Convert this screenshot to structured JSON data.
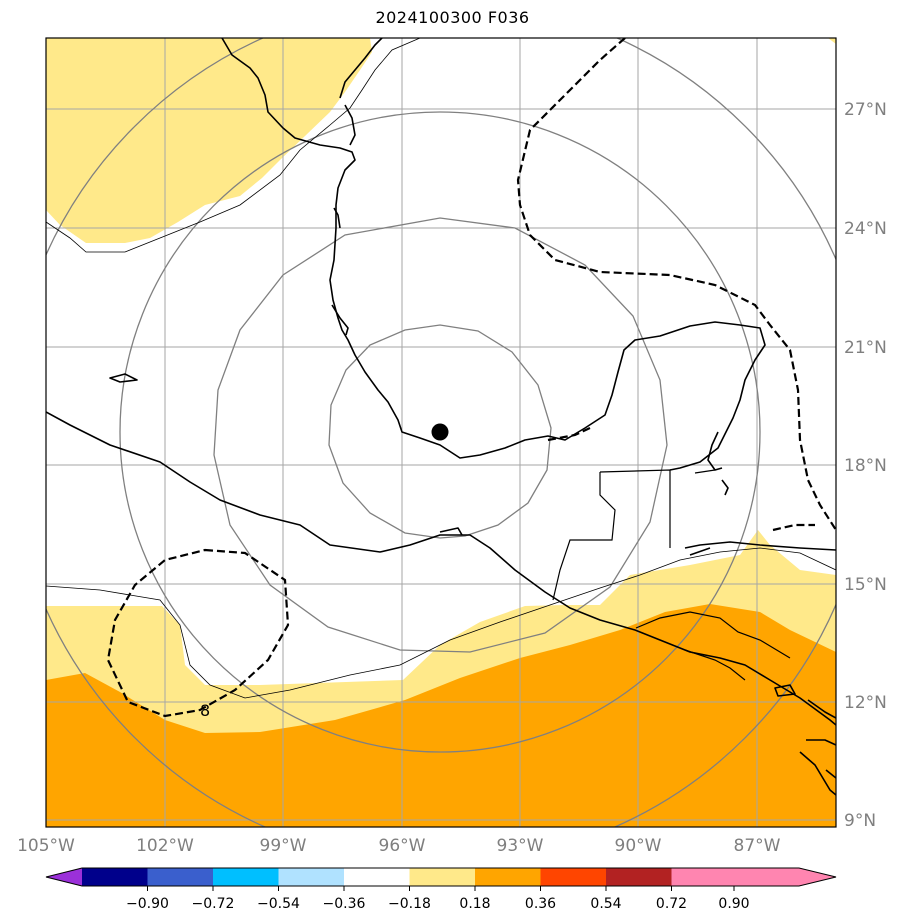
{
  "title": "2024100300 F036",
  "map": {
    "lon_ticks": [
      "105°W",
      "102°W",
      "99°W",
      "96°W",
      "93°W",
      "90°W",
      "87°W"
    ],
    "lat_ticks": [
      "27°N",
      "24°N",
      "21°N",
      "18°N",
      "15°N",
      "12°N",
      "9°N"
    ],
    "contour_label": "8",
    "center_marker": "storm-center"
  },
  "colorbar": {
    "labels": [
      "−0.90",
      "−0.72",
      "−0.54",
      "−0.36",
      "−0.18",
      "0.18",
      "0.36",
      "0.54",
      "0.72",
      "0.90"
    ],
    "colors": [
      "#9b30d9",
      "#00008b",
      "#3a5fcd",
      "#00bfff",
      "#b0e2ff",
      "#ffffff",
      "#ffe98a",
      "#ffa500",
      "#ff4500",
      "#b22222",
      "#ff85b0"
    ]
  }
}
